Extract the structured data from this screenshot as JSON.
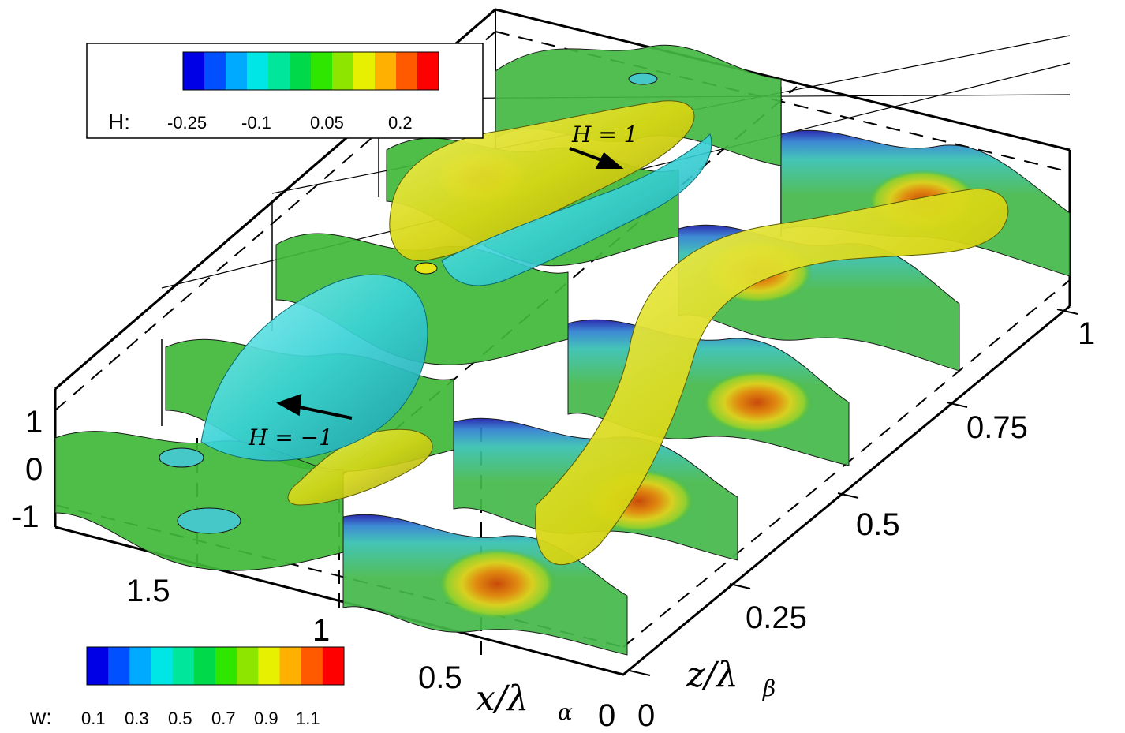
{
  "colorbar_H": {
    "title": "H:",
    "ticks": [
      "-0.25",
      "-0.1",
      "0.05",
      "0.2"
    ],
    "colors": [
      "#0000e6",
      "#0050ff",
      "#00aaff",
      "#00e6e6",
      "#00e69a",
      "#00d94a",
      "#2ee600",
      "#8ee600",
      "#e6f000",
      "#ffb000",
      "#ff5a00",
      "#ff0000"
    ]
  },
  "colorbar_w": {
    "title": "w:",
    "ticks": [
      "0.1",
      "0.3",
      "0.5",
      "0.7",
      "0.9",
      "1.1"
    ],
    "colors": [
      "#0000e6",
      "#0050ff",
      "#00aaff",
      "#00e6e6",
      "#00e69a",
      "#00d94a",
      "#2ee600",
      "#8ee600",
      "#e6f000",
      "#ffb000",
      "#ff5a00",
      "#ff0000"
    ]
  },
  "annotations": {
    "h_pos": "H = 1",
    "h_neg": "H = −1"
  },
  "axes": {
    "x_label": "x/λ",
    "x_label_sub": "α",
    "x_ticks": [
      "0",
      "0.5",
      "1",
      "1.5"
    ],
    "z_label": "z/λ",
    "z_label_sub": "β",
    "z_ticks": [
      "0",
      "0.25",
      "0.5",
      "0.75",
      "1"
    ],
    "y_ticks": [
      "1",
      "0",
      "-1"
    ]
  },
  "colors": {
    "sheet_green": "#3fb83a",
    "tube_yellow": "#d8d81c",
    "tube_cyan": "#3ed8d8",
    "box_line": "#000000"
  }
}
